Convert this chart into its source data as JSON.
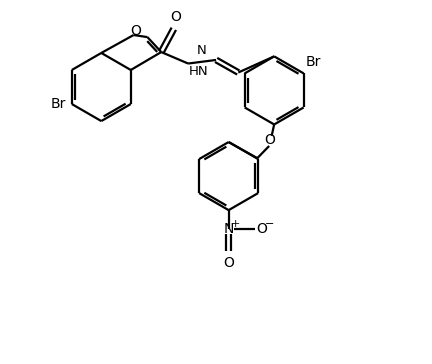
{
  "bg_color": "#ffffff",
  "line_color": "#000000",
  "lw": 1.6,
  "fs": 10,
  "xlim": [
    0,
    11
  ],
  "ylim": [
    0,
    10
  ]
}
